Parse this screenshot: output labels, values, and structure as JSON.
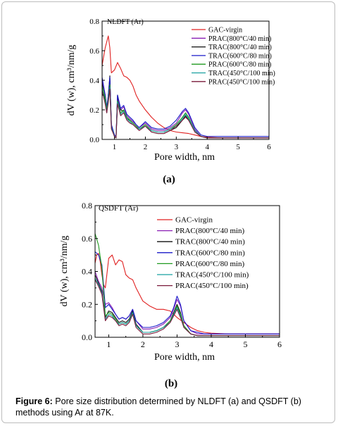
{
  "caption": {
    "label": "Figure 6:",
    "text": "Pore size distribution determined by NLDFT (a) and QSDFT (b) methods using Ar at 87K."
  },
  "chart_data": [
    {
      "type": "line",
      "panel_label": "(a)",
      "method": "NLDFT (Ar)",
      "xlabel": "Pore width, nm",
      "ylabel": "dV (w), cm³/nm/g",
      "xlim": [
        0.6,
        6
      ],
      "ylim": [
        0,
        0.8
      ],
      "xticks": [
        1,
        2,
        3,
        4,
        5,
        6
      ],
      "yticks": [
        0.0,
        0.2,
        0.4,
        0.6,
        0.8
      ],
      "xtick_labels": [
        "1",
        "2",
        "3",
        "4",
        "5",
        "6"
      ],
      "ytick_labels": [
        "0.0",
        "0.2",
        "0.4",
        "0.6",
        "0.8"
      ],
      "grid": false,
      "legend_position": "top-right",
      "series": [
        {
          "name": "GAC-virgin",
          "color": "#e02020",
          "x": [
            0.6,
            0.7,
            0.8,
            0.85,
            0.9,
            1.0,
            1.1,
            1.2,
            1.3,
            1.4,
            1.5,
            1.6,
            1.7,
            1.8,
            2.0,
            2.2,
            2.4,
            2.6,
            2.8,
            3.0,
            3.2,
            3.4,
            3.6,
            3.8,
            4.0,
            4.5,
            5.0,
            5.5,
            6.0
          ],
          "y": [
            0.5,
            0.62,
            0.7,
            0.62,
            0.45,
            0.47,
            0.52,
            0.48,
            0.43,
            0.42,
            0.4,
            0.36,
            0.3,
            0.26,
            0.2,
            0.15,
            0.11,
            0.08,
            0.06,
            0.05,
            0.045,
            0.04,
            0.03,
            0.02,
            0.015,
            0.01,
            0.01,
            0.01,
            0.01
          ]
        },
        {
          "name": "PRAC(800°C/40 min)",
          "color": "#8a1fb5",
          "x": [
            0.6,
            0.7,
            0.75,
            0.8,
            0.85,
            0.9,
            1.0,
            1.05,
            1.1,
            1.2,
            1.3,
            1.4,
            1.5,
            1.6,
            1.7,
            1.8,
            2.0,
            2.2,
            2.4,
            2.6,
            2.8,
            3.0,
            3.2,
            3.3,
            3.4,
            3.6,
            3.8,
            4.0,
            4.5,
            5.0,
            5.5,
            6.0
          ],
          "y": [
            0.4,
            0.3,
            0.2,
            0.28,
            0.4,
            0.1,
            0.02,
            0.01,
            0.28,
            0.2,
            0.22,
            0.16,
            0.14,
            0.12,
            0.1,
            0.08,
            0.11,
            0.07,
            0.06,
            0.06,
            0.08,
            0.11,
            0.18,
            0.2,
            0.17,
            0.07,
            0.02,
            0.01,
            0.01,
            0.01,
            0.01,
            0.01
          ]
        },
        {
          "name": "TRAC(800°C/40 min)",
          "color": "#111111",
          "x": [
            0.6,
            0.7,
            0.75,
            0.8,
            0.85,
            0.9,
            1.0,
            1.05,
            1.1,
            1.2,
            1.3,
            1.4,
            1.5,
            1.6,
            1.7,
            1.8,
            2.0,
            2.2,
            2.4,
            2.6,
            2.8,
            3.0,
            3.2,
            3.3,
            3.4,
            3.6,
            3.8,
            4.0,
            4.5,
            5.0,
            5.5,
            6.0
          ],
          "y": [
            0.38,
            0.26,
            0.18,
            0.3,
            0.43,
            0.09,
            0.02,
            0.01,
            0.3,
            0.2,
            0.19,
            0.14,
            0.13,
            0.11,
            0.09,
            0.07,
            0.09,
            0.05,
            0.04,
            0.04,
            0.06,
            0.08,
            0.13,
            0.16,
            0.13,
            0.06,
            0.02,
            0.01,
            0.01,
            0.01,
            0.01,
            0.01
          ]
        },
        {
          "name": "TRAC(600°C/80 min)",
          "color": "#1a1ac8",
          "x": [
            0.6,
            0.7,
            0.75,
            0.8,
            0.85,
            0.9,
            1.0,
            1.05,
            1.1,
            1.2,
            1.3,
            1.4,
            1.5,
            1.6,
            1.7,
            1.8,
            2.0,
            2.2,
            2.4,
            2.6,
            2.8,
            3.0,
            3.2,
            3.3,
            3.4,
            3.6,
            3.8,
            4.0,
            4.5,
            5.0,
            5.5,
            6.0
          ],
          "y": [
            0.42,
            0.3,
            0.22,
            0.3,
            0.42,
            0.1,
            0.03,
            0.02,
            0.3,
            0.21,
            0.23,
            0.17,
            0.15,
            0.13,
            0.1,
            0.08,
            0.12,
            0.08,
            0.07,
            0.07,
            0.09,
            0.13,
            0.19,
            0.21,
            0.18,
            0.08,
            0.03,
            0.02,
            0.02,
            0.02,
            0.02,
            0.02
          ]
        },
        {
          "name": "PRAC(600°C/80 min)",
          "color": "#1f9a1f",
          "x": [
            0.6,
            0.7,
            0.75,
            0.8,
            0.85,
            0.9,
            1.0,
            1.05,
            1.1,
            1.2,
            1.3,
            1.4,
            1.5,
            1.6,
            1.7,
            1.8,
            2.0,
            2.2,
            2.4,
            2.6,
            2.8,
            3.0,
            3.2,
            3.3,
            3.4,
            3.6,
            3.8,
            4.0,
            4.5,
            5.0,
            5.5,
            6.0
          ],
          "y": [
            0.36,
            0.28,
            0.2,
            0.27,
            0.37,
            0.08,
            0.02,
            0.01,
            0.26,
            0.18,
            0.2,
            0.15,
            0.13,
            0.11,
            0.09,
            0.07,
            0.1,
            0.06,
            0.05,
            0.05,
            0.07,
            0.1,
            0.15,
            0.18,
            0.15,
            0.06,
            0.02,
            0.01,
            0.01,
            0.01,
            0.01,
            0.01
          ]
        },
        {
          "name": "TRAC(450°C/100 min)",
          "color": "#18a0a0",
          "x": [
            0.6,
            0.7,
            0.75,
            0.8,
            0.85,
            0.9,
            1.0,
            1.05,
            1.1,
            1.2,
            1.3,
            1.4,
            1.5,
            1.6,
            1.7,
            1.8,
            2.0,
            2.2,
            2.4,
            2.6,
            2.8,
            3.0,
            3.2,
            3.3,
            3.4,
            3.6,
            3.8,
            4.0,
            4.5,
            5.0,
            5.5,
            6.0
          ],
          "y": [
            0.34,
            0.25,
            0.19,
            0.26,
            0.35,
            0.08,
            0.02,
            0.01,
            0.25,
            0.17,
            0.19,
            0.14,
            0.12,
            0.1,
            0.08,
            0.07,
            0.09,
            0.06,
            0.05,
            0.05,
            0.07,
            0.09,
            0.14,
            0.17,
            0.14,
            0.06,
            0.02,
            0.01,
            0.01,
            0.01,
            0.01,
            0.01
          ]
        },
        {
          "name": "PRAC(450°C/100 min)",
          "color": "#7a1a3a",
          "x": [
            0.6,
            0.7,
            0.75,
            0.8,
            0.85,
            0.9,
            1.0,
            1.05,
            1.1,
            1.2,
            1.3,
            1.4,
            1.5,
            1.6,
            1.7,
            1.8,
            2.0,
            2.2,
            2.4,
            2.6,
            2.8,
            3.0,
            3.2,
            3.3,
            3.4,
            3.6,
            3.8,
            4.0,
            4.5,
            5.0,
            5.5,
            6.0
          ],
          "y": [
            0.33,
            0.24,
            0.18,
            0.25,
            0.34,
            0.07,
            0.02,
            0.01,
            0.24,
            0.16,
            0.18,
            0.13,
            0.11,
            0.1,
            0.08,
            0.06,
            0.09,
            0.05,
            0.04,
            0.04,
            0.06,
            0.09,
            0.13,
            0.15,
            0.13,
            0.05,
            0.02,
            0.01,
            0.01,
            0.01,
            0.01,
            0.01
          ]
        }
      ]
    },
    {
      "type": "line",
      "panel_label": "(b)",
      "method": "QSDFT (Ar)",
      "xlabel": "Pore width, nm",
      "ylabel": "dV (w), cm³/nm/g",
      "xlim": [
        0.6,
        6
      ],
      "ylim": [
        0,
        0.8
      ],
      "xticks": [
        1,
        2,
        3,
        4,
        5,
        6
      ],
      "yticks": [
        0.0,
        0.2,
        0.4,
        0.6,
        0.8
      ],
      "xtick_labels": [
        "1",
        "2",
        "3",
        "4",
        "5",
        "6"
      ],
      "ytick_labels": [
        "0.0",
        "0.2",
        "0.4",
        "0.6",
        "0.8"
      ],
      "grid": false,
      "legend_position": "top-right",
      "series": [
        {
          "name": "GAC-virgin",
          "color": "#e02020",
          "x": [
            0.6,
            0.65,
            0.7,
            0.75,
            0.8,
            0.85,
            0.9,
            1.0,
            1.1,
            1.2,
            1.3,
            1.4,
            1.5,
            1.6,
            1.7,
            1.8,
            2.0,
            2.2,
            2.4,
            2.6,
            2.8,
            3.0,
            3.2,
            3.4,
            3.6,
            3.8,
            4.0,
            4.5,
            5.0,
            5.5,
            6.0
          ],
          "y": [
            0.45,
            0.5,
            0.51,
            0.46,
            0.38,
            0.32,
            0.3,
            0.48,
            0.5,
            0.44,
            0.47,
            0.46,
            0.38,
            0.36,
            0.35,
            0.3,
            0.22,
            0.19,
            0.17,
            0.17,
            0.16,
            0.12,
            0.09,
            0.06,
            0.04,
            0.03,
            0.025,
            0.02,
            0.02,
            0.02,
            0.02
          ]
        },
        {
          "name": "PRAC(800°C/40 min)",
          "color": "#8a1fb5",
          "x": [
            0.6,
            0.7,
            0.8,
            0.9,
            1.0,
            1.1,
            1.2,
            1.3,
            1.4,
            1.5,
            1.6,
            1.7,
            1.8,
            2.0,
            2.2,
            2.4,
            2.6,
            2.8,
            2.9,
            3.0,
            3.1,
            3.2,
            3.4,
            3.6,
            3.8,
            4.0,
            4.5,
            5.0,
            5.5,
            6.0
          ],
          "y": [
            0.4,
            0.34,
            0.3,
            0.2,
            0.21,
            0.18,
            0.14,
            0.11,
            0.12,
            0.11,
            0.13,
            0.17,
            0.1,
            0.05,
            0.05,
            0.06,
            0.08,
            0.12,
            0.17,
            0.23,
            0.19,
            0.1,
            0.04,
            0.02,
            0.02,
            0.02,
            0.02,
            0.02,
            0.02,
            0.02
          ]
        },
        {
          "name": "TRAC(800°C/40 min)",
          "color": "#111111",
          "x": [
            0.6,
            0.7,
            0.8,
            0.9,
            1.0,
            1.1,
            1.2,
            1.3,
            1.4,
            1.5,
            1.6,
            1.7,
            1.8,
            2.0,
            2.2,
            2.4,
            2.6,
            2.8,
            2.9,
            3.0,
            3.1,
            3.2,
            3.4,
            3.6,
            3.8,
            4.0,
            4.5,
            5.0,
            5.5,
            6.0
          ],
          "y": [
            0.38,
            0.33,
            0.28,
            0.12,
            0.16,
            0.15,
            0.12,
            0.09,
            0.1,
            0.09,
            0.11,
            0.16,
            0.08,
            0.03,
            0.03,
            0.04,
            0.06,
            0.1,
            0.15,
            0.2,
            0.15,
            0.07,
            0.02,
            0.01,
            0.01,
            0.01,
            0.01,
            0.01,
            0.01,
            0.01
          ]
        },
        {
          "name": "TRAC(600°C/80 min)",
          "color": "#1a1ac8",
          "x": [
            0.6,
            0.7,
            0.8,
            0.9,
            1.0,
            1.1,
            1.2,
            1.3,
            1.4,
            1.5,
            1.6,
            1.7,
            1.8,
            2.0,
            2.2,
            2.4,
            2.6,
            2.8,
            2.9,
            3.0,
            3.1,
            3.2,
            3.4,
            3.6,
            3.8,
            4.0,
            4.5,
            5.0,
            5.5,
            6.0
          ],
          "y": [
            0.52,
            0.5,
            0.44,
            0.18,
            0.2,
            0.17,
            0.14,
            0.11,
            0.12,
            0.11,
            0.13,
            0.17,
            0.1,
            0.06,
            0.06,
            0.07,
            0.09,
            0.13,
            0.18,
            0.25,
            0.2,
            0.1,
            0.04,
            0.03,
            0.02,
            0.02,
            0.02,
            0.02,
            0.02,
            0.02
          ]
        },
        {
          "name": "PRAC(600°C/80 min)",
          "color": "#1f9a1f",
          "x": [
            0.6,
            0.7,
            0.8,
            0.9,
            1.0,
            1.1,
            1.2,
            1.3,
            1.4,
            1.5,
            1.6,
            1.7,
            1.8,
            2.0,
            2.2,
            2.4,
            2.6,
            2.8,
            2.9,
            3.0,
            3.1,
            3.2,
            3.4,
            3.6,
            3.8,
            4.0,
            4.5,
            5.0,
            5.5,
            6.0
          ],
          "y": [
            0.63,
            0.56,
            0.42,
            0.13,
            0.15,
            0.14,
            0.11,
            0.08,
            0.09,
            0.08,
            0.1,
            0.15,
            0.07,
            0.03,
            0.03,
            0.04,
            0.06,
            0.1,
            0.14,
            0.19,
            0.14,
            0.07,
            0.02,
            0.01,
            0.01,
            0.01,
            0.01,
            0.01,
            0.01,
            0.01
          ]
        },
        {
          "name": "TRAC(450°C/100 min)",
          "color": "#18a0a0",
          "x": [
            0.6,
            0.7,
            0.8,
            0.9,
            1.0,
            1.1,
            1.2,
            1.3,
            1.4,
            1.5,
            1.6,
            1.7,
            1.8,
            2.0,
            2.2,
            2.4,
            2.6,
            2.8,
            2.9,
            3.0,
            3.1,
            3.2,
            3.4,
            3.6,
            3.8,
            4.0,
            4.5,
            5.0,
            5.5,
            6.0
          ],
          "y": [
            0.36,
            0.32,
            0.27,
            0.11,
            0.14,
            0.13,
            0.1,
            0.08,
            0.09,
            0.08,
            0.1,
            0.15,
            0.07,
            0.03,
            0.03,
            0.04,
            0.06,
            0.09,
            0.14,
            0.18,
            0.13,
            0.06,
            0.02,
            0.01,
            0.01,
            0.01,
            0.01,
            0.01,
            0.01,
            0.01
          ]
        },
        {
          "name": "PRAC(450°C/100 min)",
          "color": "#7a1a3a",
          "x": [
            0.6,
            0.7,
            0.8,
            0.9,
            1.0,
            1.1,
            1.2,
            1.3,
            1.4,
            1.5,
            1.6,
            1.7,
            1.8,
            2.0,
            2.2,
            2.4,
            2.6,
            2.8,
            2.9,
            3.0,
            3.1,
            3.2,
            3.4,
            3.6,
            3.8,
            4.0,
            4.5,
            5.0,
            5.5,
            6.0
          ],
          "y": [
            0.35,
            0.31,
            0.26,
            0.1,
            0.13,
            0.12,
            0.1,
            0.07,
            0.08,
            0.07,
            0.09,
            0.14,
            0.06,
            0.02,
            0.02,
            0.03,
            0.05,
            0.09,
            0.13,
            0.17,
            0.12,
            0.06,
            0.02,
            0.01,
            0.01,
            0.01,
            0.01,
            0.01,
            0.01,
            0.01
          ]
        }
      ]
    }
  ]
}
